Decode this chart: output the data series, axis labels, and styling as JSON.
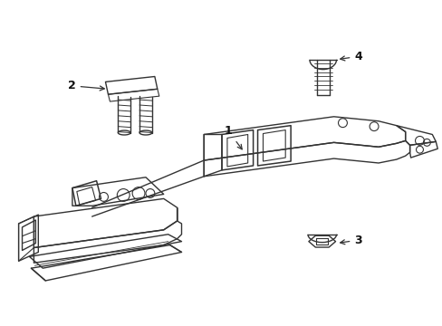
{
  "background_color": "#ffffff",
  "line_color": "#333333",
  "line_width": 1.0,
  "label_color": "#111111",
  "figsize": [
    4.89,
    3.6
  ],
  "dpi": 100
}
